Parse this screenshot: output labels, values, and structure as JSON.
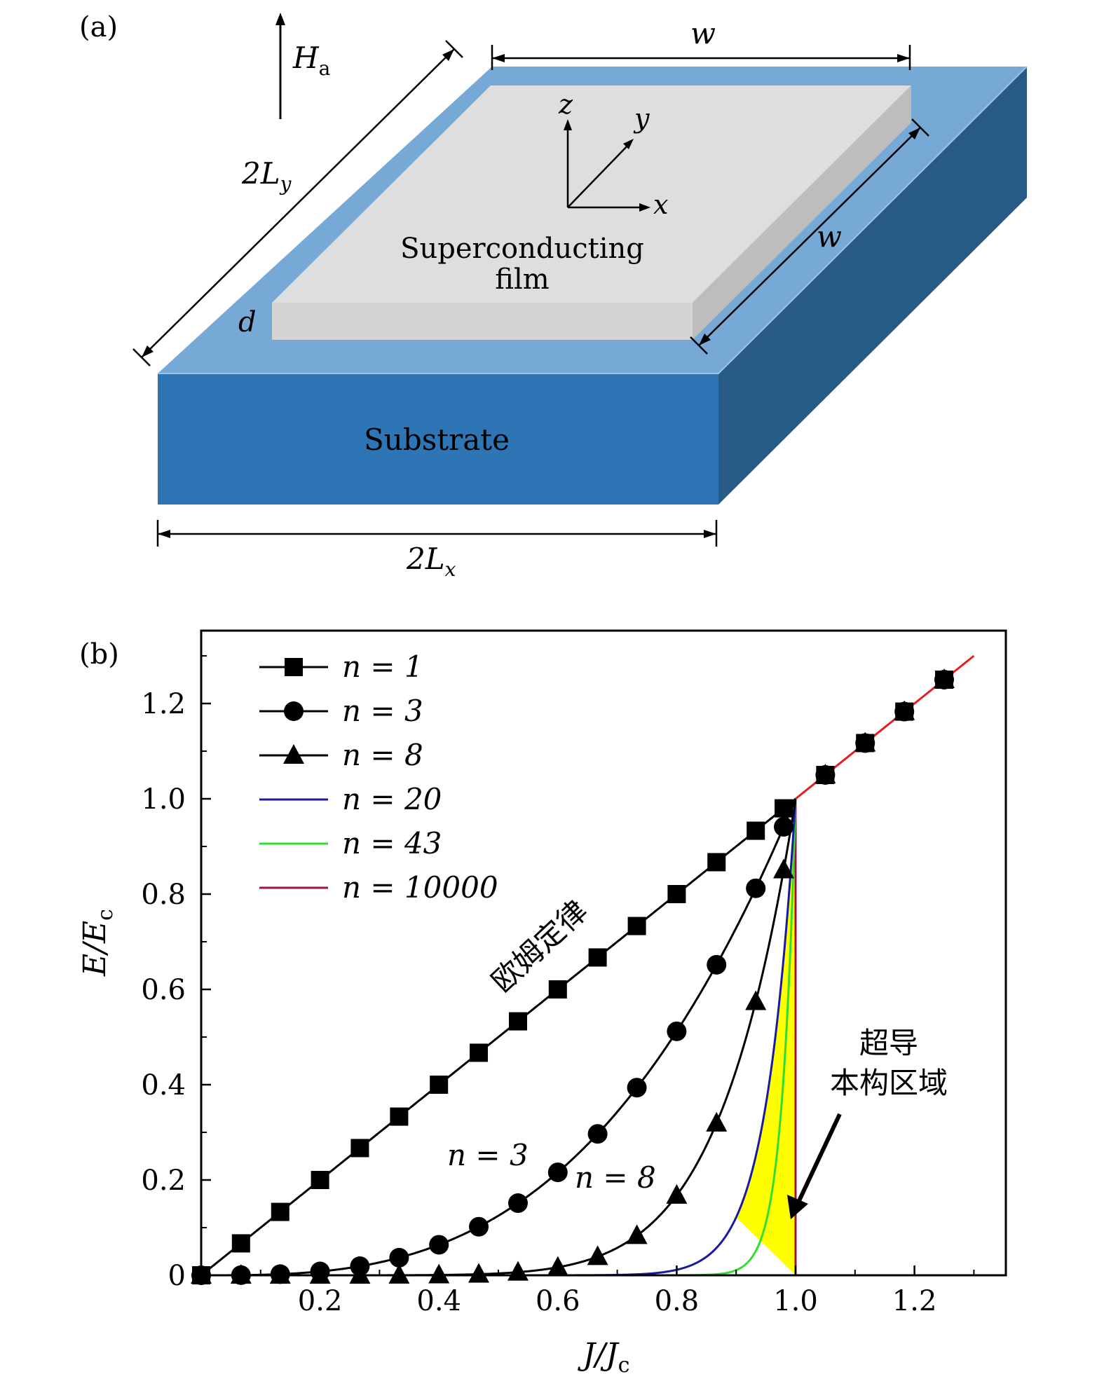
{
  "panel_a": {
    "label": "(a)",
    "field_label": "H",
    "field_sub": "a",
    "width_label": "w",
    "length_y_label": "2L",
    "length_y_sub": "y",
    "length_x_label": "2L",
    "length_x_sub": "x",
    "thickness_label": "d",
    "axis_z": "z",
    "axis_y": "y",
    "axis_x": "x",
    "film_label_1": "Superconducting",
    "film_label_2": "film",
    "substrate_label": "Substrate",
    "colors": {
      "substrate_top": "#76a9d6",
      "substrate_front": "#2e75b6",
      "substrate_side": "#285a86",
      "film_top": "#dedede",
      "film_side": "#bdbdbd"
    }
  },
  "chart_data": {
    "type": "line",
    "panel_label": "(b)",
    "xlabel": "J/J",
    "xlabel_sub": "c",
    "ylabel": "E/E",
    "ylabel_sub": "c",
    "xlim": [
      0,
      1.35
    ],
    "ylim": [
      0,
      1.35
    ],
    "xticks": [
      0.2,
      0.4,
      0.6,
      0.8,
      1.0,
      1.2
    ],
    "xtick_labels": [
      "0.2",
      "0.4",
      "0.6",
      "0.8",
      "1.0",
      "1.2"
    ],
    "yticks": [
      0,
      0.2,
      0.4,
      0.6,
      0.8,
      1.0,
      1.2
    ],
    "ytick_labels": [
      "0",
      "0.2",
      "0.4",
      "0.6",
      "0.8",
      "1.0",
      "1.2"
    ],
    "legend_position": "top-left",
    "series": [
      {
        "name": "n = 1",
        "exponent": 1,
        "marker": "square",
        "color": "#000000"
      },
      {
        "name": "n = 3",
        "exponent": 3,
        "marker": "circle",
        "color": "#000000"
      },
      {
        "name": "n = 8",
        "exponent": 8,
        "marker": "triangle",
        "color": "#000000"
      },
      {
        "name": "n = 20",
        "exponent": 20,
        "marker": "none",
        "color": "#1a1aa0"
      },
      {
        "name": "n = 43",
        "exponent": 43,
        "marker": "none",
        "color": "#33dd33"
      },
      {
        "name": "n = 10000",
        "exponent": 10000,
        "marker": "none",
        "color": "#a01040"
      }
    ],
    "linear_branch": {
      "x": [
        1.0,
        1.3
      ],
      "y": [
        1.0,
        1.3
      ],
      "color": "#e02020"
    },
    "marker_x": [
      0.0,
      0.067,
      0.133,
      0.2,
      0.267,
      0.333,
      0.4,
      0.467,
      0.533,
      0.6,
      0.667,
      0.733,
      0.8,
      0.867,
      0.933,
      0.98,
      1.05,
      1.117,
      1.183,
      1.25
    ],
    "fill_color": "#ffff00",
    "annotations": {
      "ohm_law": "欧姆定律",
      "n3": "n = 3",
      "n8": "n = 8",
      "region_line1": "超导",
      "region_line2": "本构区域"
    }
  }
}
